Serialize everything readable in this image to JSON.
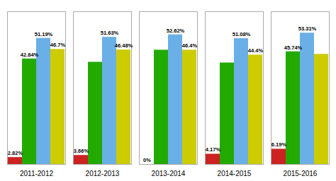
{
  "chart_data": {
    "type": "bar",
    "categories": [
      "2011-2012",
      "2012-2013",
      "2013-2014",
      "2014-2015",
      "2015-2016"
    ],
    "series": [
      {
        "color": "#cc2222",
        "values": [
          2.82,
          3.66,
          0.0,
          4.17,
          6.19
        ],
        "value_labels": [
          "2.82%",
          "3.66%",
          "0%",
          "4.17%",
          "6.19%"
        ]
      },
      {
        "color": "#22aa00",
        "values": [
          42.84,
          41.5,
          46.4,
          41.2,
          45.74
        ],
        "value_labels": [
          "42.84%",
          null,
          null,
          null,
          "45.74%"
        ]
      },
      {
        "color": "#6aafe6",
        "values": [
          51.19,
          51.63,
          52.62,
          51.08,
          53.31
        ],
        "value_labels": [
          "51.19%",
          "51.63%",
          "52.62%",
          "51.08%",
          "53.31%"
        ]
      },
      {
        "color": "#cccc00",
        "values": [
          46.7,
          46.48,
          46.4,
          44.4,
          44.7
        ],
        "value_labels": [
          "46.7%",
          "46.48%",
          "46.4%",
          "44.4%",
          null
        ]
      }
    ],
    "ylim": [
      0,
      62
    ],
    "yticks": [],
    "grid": false,
    "data_labels": true,
    "tick_labels": "x"
  }
}
